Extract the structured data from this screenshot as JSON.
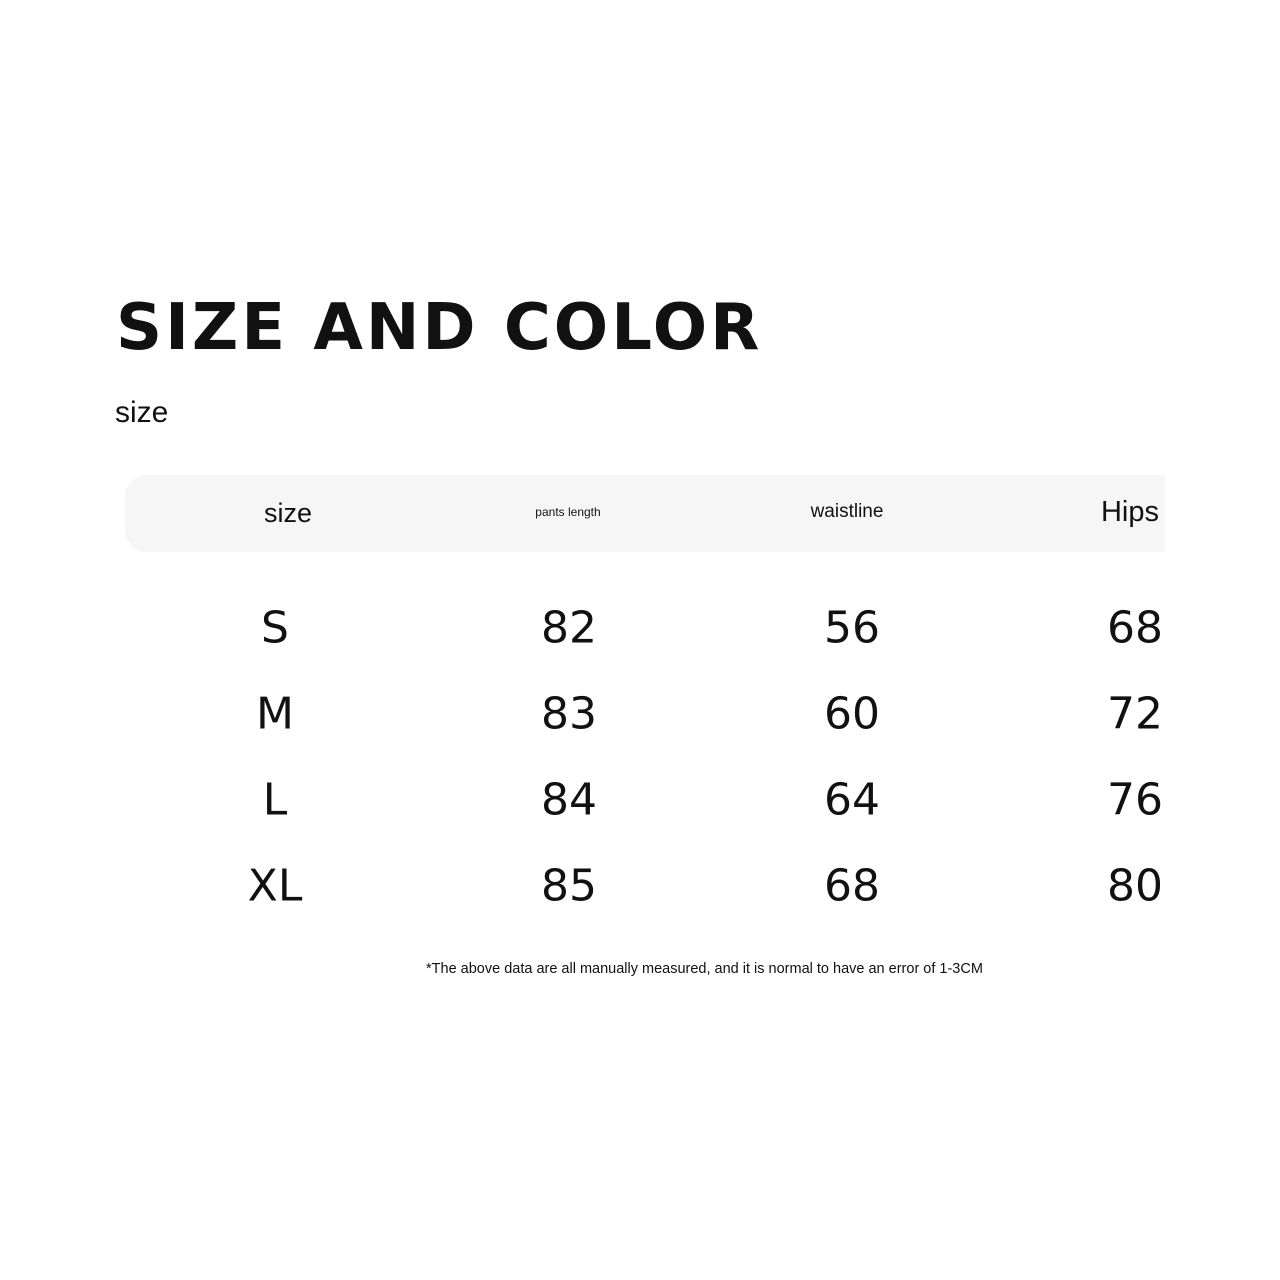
{
  "title": "SIZE AND COLOR",
  "subtitle": "size",
  "table": {
    "headers": [
      "size",
      "pants length",
      "waistline",
      "Hips"
    ],
    "rows": [
      [
        "S",
        "82",
        "56",
        "68"
      ],
      [
        "M",
        "83",
        "60",
        "72"
      ],
      [
        "L",
        "84",
        "64",
        "76"
      ],
      [
        "XL",
        "85",
        "68",
        "80"
      ]
    ]
  },
  "note": "*The above data are all manually measured, and it is normal to have an error of 1-3CM"
}
